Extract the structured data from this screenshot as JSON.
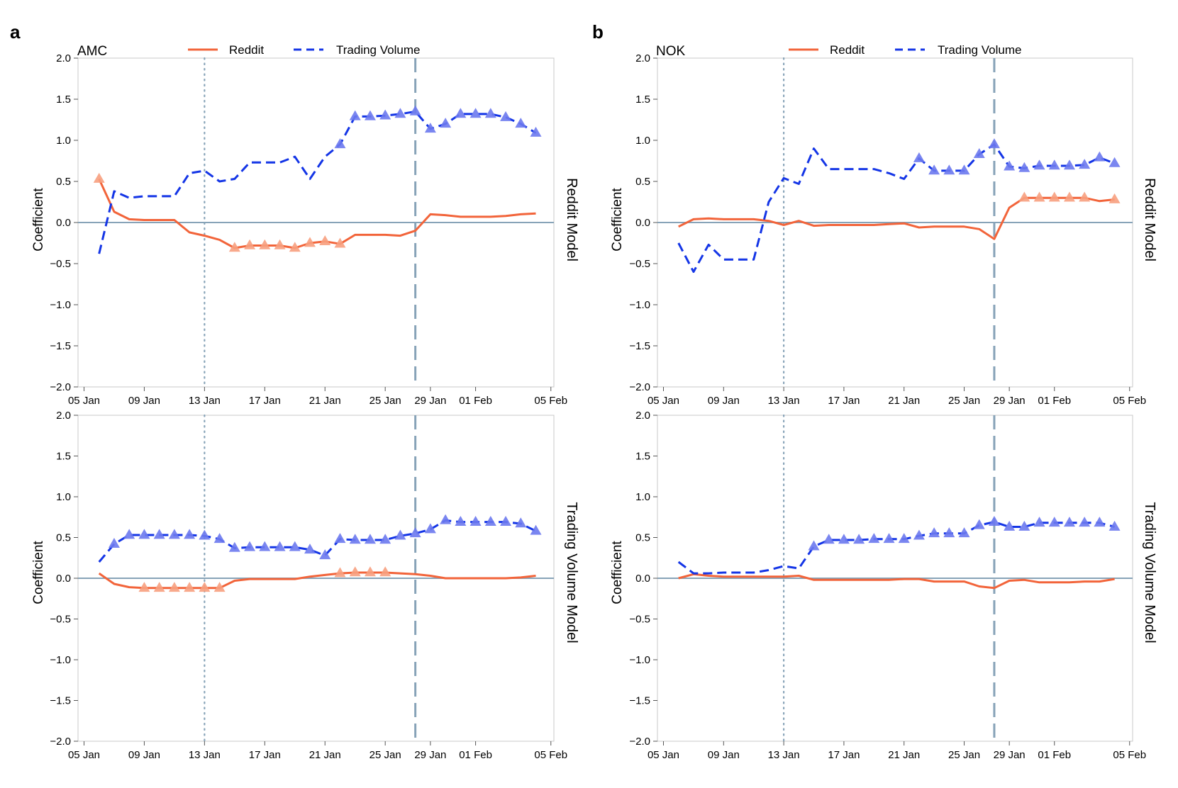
{
  "colors": {
    "reddit": "#f2643a",
    "volume": "#1435e6",
    "reddit_marker": "#f7a080",
    "volume_marker": "#6b79ee",
    "ref": "#87a3b8",
    "frame": "#c8c8c8"
  },
  "figure": {
    "panels": [
      {
        "letter": "a",
        "stock": "AMC"
      },
      {
        "letter": "b",
        "stock": "NOK"
      }
    ],
    "legend": {
      "reddit": "Reddit",
      "volume": "Trading Volume"
    },
    "row_titles": [
      "Reddit Model",
      "Trading Volume Model"
    ],
    "y_label": "Coefficient",
    "y_ticks": [
      "2.0",
      "1.5",
      "1.0",
      "0.5",
      "0.0",
      "−0.5",
      "−1.0",
      "−1.5",
      "−2.0"
    ],
    "x_ticks": [
      "05 Jan",
      "09 Jan",
      "13 Jan",
      "17 Jan",
      "21 Jan",
      "25 Jan",
      "29 Jan",
      "01 Feb",
      "05 Feb"
    ]
  },
  "chart_data": [
    {
      "type": "line",
      "title": "AMC - Reddit Model",
      "xlabel": "",
      "ylabel": "Coefficient",
      "ylim": [
        -2,
        2
      ],
      "x_range_days": [
        -0.4,
        31.2
      ],
      "x_tick_days": [
        0,
        4,
        8,
        12,
        16,
        20,
        23,
        26,
        31
      ],
      "x_tick_labels": [
        "05 Jan",
        "09 Jan",
        "13 Jan",
        "17 Jan",
        "21 Jan",
        "25 Jan",
        "29 Jan",
        "01 Feb",
        "05 Feb"
      ],
      "reference_lines": {
        "dotted_day": 8,
        "dashed_day": 22,
        "zero": 0
      },
      "x_days": [
        1,
        2,
        3,
        4,
        5,
        6,
        7,
        8,
        9,
        10,
        11,
        12,
        13,
        14,
        15,
        16,
        17,
        18,
        19,
        20,
        21,
        22,
        23,
        24,
        25,
        26,
        27,
        28,
        29,
        30
      ],
      "series": [
        {
          "name": "Reddit",
          "style": "solid",
          "values": [
            0.53,
            0.13,
            0.04,
            0.03,
            0.03,
            0.03,
            -0.12,
            -0.16,
            -0.21,
            -0.31,
            -0.28,
            -0.28,
            -0.28,
            -0.31,
            -0.25,
            -0.23,
            -0.26,
            -0.15,
            -0.15,
            -0.15,
            -0.16,
            -0.1,
            0.1,
            0.09,
            0.07,
            0.07,
            0.07,
            0.08,
            0.1,
            0.11
          ],
          "significant": [
            1,
            0,
            0,
            0,
            0,
            0,
            0,
            0,
            0,
            1,
            1,
            1,
            1,
            1,
            1,
            1,
            1,
            0,
            0,
            0,
            0,
            0,
            0,
            0,
            0,
            0,
            0,
            0,
            0,
            0
          ]
        },
        {
          "name": "Trading Volume",
          "style": "dashed",
          "values": [
            -0.38,
            0.38,
            0.3,
            0.32,
            0.32,
            0.32,
            0.6,
            0.63,
            0.5,
            0.53,
            0.73,
            0.73,
            0.73,
            0.8,
            0.53,
            0.8,
            0.95,
            1.29,
            1.29,
            1.3,
            1.32,
            1.35,
            1.14,
            1.2,
            1.32,
            1.32,
            1.32,
            1.28,
            1.2,
            1.09
          ],
          "significant": [
            0,
            0,
            0,
            0,
            0,
            0,
            0,
            0,
            0,
            0,
            0,
            0,
            0,
            0,
            0,
            0,
            1,
            1,
            1,
            1,
            1,
            1,
            1,
            1,
            1,
            1,
            1,
            1,
            1,
            1
          ]
        }
      ]
    },
    {
      "type": "line",
      "title": "AMC - Trading Volume Model",
      "xlabel": "",
      "ylabel": "Coefficient",
      "ylim": [
        -2,
        2
      ],
      "x_range_days": [
        -0.4,
        31.2
      ],
      "x_tick_days": [
        0,
        4,
        8,
        12,
        16,
        20,
        23,
        26,
        31
      ],
      "x_tick_labels": [
        "05 Jan",
        "09 Jan",
        "13 Jan",
        "17 Jan",
        "21 Jan",
        "25 Jan",
        "29 Jan",
        "01 Feb",
        "05 Feb"
      ],
      "reference_lines": {
        "dotted_day": 8,
        "dashed_day": 22,
        "zero": 0
      },
      "x_days": [
        1,
        2,
        3,
        4,
        5,
        6,
        7,
        8,
        9,
        10,
        11,
        12,
        13,
        14,
        15,
        16,
        17,
        18,
        19,
        20,
        21,
        22,
        23,
        24,
        25,
        26,
        27,
        28,
        29,
        30
      ],
      "series": [
        {
          "name": "Reddit",
          "style": "solid",
          "values": [
            0.06,
            -0.07,
            -0.11,
            -0.12,
            -0.12,
            -0.12,
            -0.12,
            -0.12,
            -0.12,
            -0.03,
            -0.01,
            -0.01,
            -0.01,
            -0.01,
            0.02,
            0.04,
            0.06,
            0.07,
            0.07,
            0.07,
            0.06,
            0.05,
            0.03,
            0.0,
            0.0,
            0.0,
            0.0,
            0.0,
            0.01,
            0.03
          ],
          "significant": [
            0,
            0,
            0,
            1,
            1,
            1,
            1,
            1,
            1,
            0,
            0,
            0,
            0,
            0,
            0,
            0,
            1,
            1,
            1,
            1,
            0,
            0,
            0,
            0,
            0,
            0,
            0,
            0,
            0,
            0
          ]
        },
        {
          "name": "Trading Volume",
          "style": "dashed",
          "values": [
            0.2,
            0.42,
            0.53,
            0.53,
            0.53,
            0.53,
            0.53,
            0.52,
            0.48,
            0.37,
            0.38,
            0.38,
            0.38,
            0.38,
            0.35,
            0.28,
            0.48,
            0.47,
            0.47,
            0.47,
            0.52,
            0.55,
            0.6,
            0.71,
            0.69,
            0.69,
            0.69,
            0.69,
            0.67,
            0.58
          ],
          "significant": [
            0,
            1,
            1,
            1,
            1,
            1,
            1,
            1,
            1,
            1,
            1,
            1,
            1,
            1,
            1,
            1,
            1,
            1,
            1,
            1,
            1,
            1,
            1,
            1,
            1,
            1,
            1,
            1,
            1,
            1
          ]
        }
      ]
    },
    {
      "type": "line",
      "title": "NOK - Reddit Model",
      "xlabel": "",
      "ylabel": "Coefficient",
      "ylim": [
        -2,
        2
      ],
      "x_range_days": [
        -0.4,
        31.2
      ],
      "x_tick_days": [
        0,
        4,
        8,
        12,
        16,
        20,
        23,
        26,
        31
      ],
      "x_tick_labels": [
        "05 Jan",
        "09 Jan",
        "13 Jan",
        "17 Jan",
        "21 Jan",
        "25 Jan",
        "29 Jan",
        "01 Feb",
        "05 Feb"
      ],
      "reference_lines": {
        "dotted_day": 8,
        "dashed_day": 22,
        "zero": 0
      },
      "x_days": [
        1,
        2,
        3,
        4,
        5,
        6,
        7,
        8,
        9,
        10,
        11,
        12,
        13,
        14,
        15,
        16,
        17,
        18,
        19,
        20,
        21,
        22,
        23,
        24,
        25,
        26,
        27,
        28,
        29,
        30
      ],
      "series": [
        {
          "name": "Reddit",
          "style": "solid",
          "values": [
            -0.05,
            0.04,
            0.05,
            0.04,
            0.04,
            0.04,
            0.02,
            -0.03,
            0.02,
            -0.04,
            -0.03,
            -0.03,
            -0.03,
            -0.03,
            -0.02,
            -0.01,
            -0.06,
            -0.05,
            -0.05,
            -0.05,
            -0.08,
            -0.2,
            0.18,
            0.3,
            0.3,
            0.3,
            0.3,
            0.3,
            0.26,
            0.28
          ],
          "significant": [
            0,
            0,
            0,
            0,
            0,
            0,
            0,
            0,
            0,
            0,
            0,
            0,
            0,
            0,
            0,
            0,
            0,
            0,
            0,
            0,
            0,
            0,
            0,
            1,
            1,
            1,
            1,
            1,
            0,
            1
          ]
        },
        {
          "name": "Trading Volume",
          "style": "dashed",
          "values": [
            -0.25,
            -0.6,
            -0.27,
            -0.45,
            -0.45,
            -0.45,
            0.25,
            0.54,
            0.47,
            0.9,
            0.65,
            0.65,
            0.65,
            0.65,
            0.6,
            0.53,
            0.78,
            0.63,
            0.63,
            0.63,
            0.83,
            0.95,
            0.68,
            0.66,
            0.69,
            0.69,
            0.69,
            0.7,
            0.79,
            0.72
          ],
          "significant": [
            0,
            0,
            0,
            0,
            0,
            0,
            0,
            0,
            0,
            0,
            0,
            0,
            0,
            0,
            0,
            0,
            1,
            1,
            1,
            1,
            1,
            1,
            1,
            1,
            1,
            1,
            1,
            1,
            1,
            1
          ]
        }
      ]
    },
    {
      "type": "line",
      "title": "NOK - Trading Volume Model",
      "xlabel": "",
      "ylabel": "Coefficient",
      "ylim": [
        -2,
        2
      ],
      "x_range_days": [
        -0.4,
        31.2
      ],
      "x_tick_days": [
        0,
        4,
        8,
        12,
        16,
        20,
        23,
        26,
        31
      ],
      "x_tick_labels": [
        "05 Jan",
        "09 Jan",
        "13 Jan",
        "17 Jan",
        "21 Jan",
        "25 Jan",
        "29 Jan",
        "01 Feb",
        "05 Feb"
      ],
      "reference_lines": {
        "dotted_day": 8,
        "dashed_day": 22,
        "zero": 0
      },
      "x_days": [
        1,
        2,
        3,
        4,
        5,
        6,
        7,
        8,
        9,
        10,
        11,
        12,
        13,
        14,
        15,
        16,
        17,
        18,
        19,
        20,
        21,
        22,
        23,
        24,
        25,
        26,
        27,
        28,
        29,
        30
      ],
      "series": [
        {
          "name": "Reddit",
          "style": "solid",
          "values": [
            0.0,
            0.05,
            0.03,
            0.02,
            0.02,
            0.02,
            0.02,
            0.02,
            0.03,
            -0.02,
            -0.02,
            -0.02,
            -0.02,
            -0.02,
            -0.02,
            -0.01,
            -0.01,
            -0.04,
            -0.04,
            -0.04,
            -0.1,
            -0.12,
            -0.03,
            -0.02,
            -0.05,
            -0.05,
            -0.05,
            -0.04,
            -0.04,
            -0.01
          ],
          "significant": [
            0,
            0,
            0,
            0,
            0,
            0,
            0,
            0,
            0,
            0,
            0,
            0,
            0,
            0,
            0,
            0,
            0,
            0,
            0,
            0,
            0,
            0,
            0,
            0,
            0,
            0,
            0,
            0,
            0,
            0
          ]
        },
        {
          "name": "Trading Volume",
          "style": "dashed",
          "values": [
            0.2,
            0.06,
            0.06,
            0.07,
            0.07,
            0.07,
            0.1,
            0.15,
            0.12,
            0.39,
            0.47,
            0.47,
            0.47,
            0.48,
            0.48,
            0.48,
            0.52,
            0.55,
            0.55,
            0.55,
            0.65,
            0.69,
            0.63,
            0.63,
            0.68,
            0.68,
            0.68,
            0.68,
            0.68,
            0.63
          ],
          "significant": [
            0,
            0,
            0,
            0,
            0,
            0,
            0,
            0,
            0,
            1,
            1,
            1,
            1,
            1,
            1,
            1,
            1,
            1,
            1,
            1,
            1,
            1,
            1,
            1,
            1,
            1,
            1,
            1,
            1,
            1
          ]
        }
      ]
    }
  ]
}
